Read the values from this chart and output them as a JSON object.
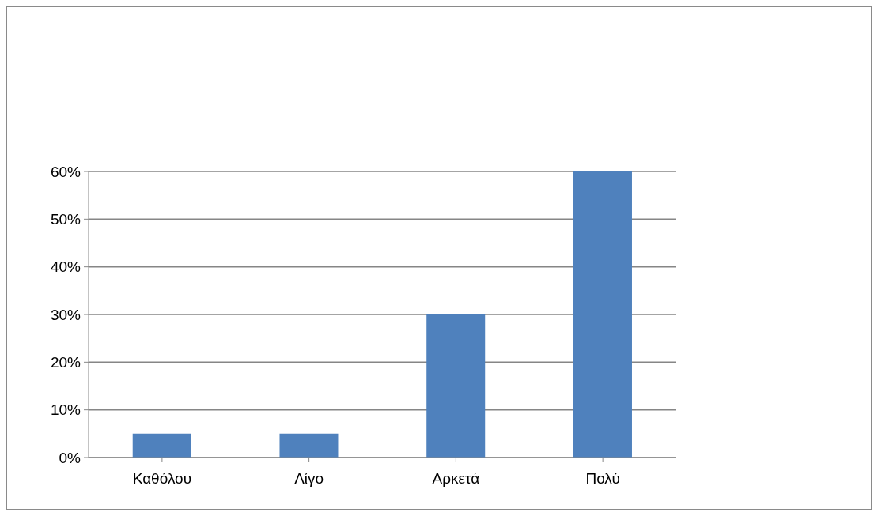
{
  "chart_data": {
    "type": "bar",
    "categories": [
      "Καθόλου",
      "Λίγο",
      "Αρκετά",
      "Πολύ"
    ],
    "values": [
      5,
      5,
      30,
      60
    ],
    "color": "#4f81bd",
    "ylim": [
      0,
      60
    ],
    "yticks": [
      {
        "value": 0,
        "label": "0%"
      },
      {
        "value": 10,
        "label": "10%"
      },
      {
        "value": 20,
        "label": "20%"
      },
      {
        "value": 30,
        "label": "30%"
      },
      {
        "value": 40,
        "label": "40%"
      },
      {
        "value": 50,
        "label": "50%"
      },
      {
        "value": 60,
        "label": "60%"
      }
    ],
    "grid": "y"
  }
}
